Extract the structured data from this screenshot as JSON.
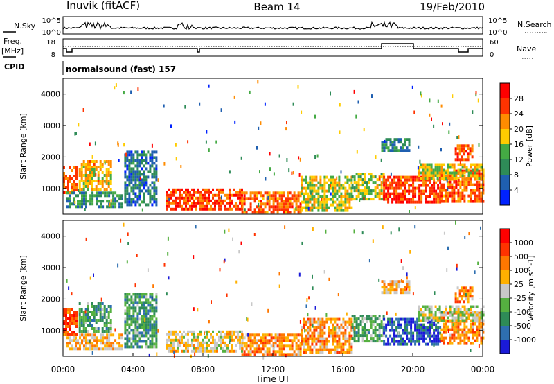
{
  "header": {
    "station": "Inuvik (fitACF)",
    "beam": "Beam 14",
    "date": "19/Feb/2010"
  },
  "top_panels": {
    "nsky_label": "N.Sky",
    "nsky_ticks": [
      "10^5",
      "10^0"
    ],
    "nsearch_label": "N.Search",
    "nsearch_ticks": [
      "10^5",
      "10^0"
    ],
    "freq_label": "Freq.",
    "freq_unit": "[MHz]",
    "freq_ticks": [
      "18",
      "8"
    ],
    "nave_label": "Nave",
    "nave_ticks": [
      "60",
      "0"
    ],
    "cpid_label": "CPID",
    "cpid_value": "normalsound (fast) 157"
  },
  "x_axis": {
    "label": "Time UT",
    "ticks": [
      "00:00",
      "04:00",
      "08:00",
      "12:00",
      "16:00",
      "20:00",
      "00:00"
    ]
  },
  "chart_data": [
    {
      "type": "heatmap",
      "quantity": "power",
      "ylabel": "Slant Range [km]",
      "ylim": [
        180,
        4500
      ],
      "yticks": [
        1000,
        2000,
        3000,
        4000
      ],
      "xlim_hours": [
        0,
        24
      ],
      "colorbar": {
        "label": "Power [dB]",
        "ticks": [
          "28",
          "24",
          "20",
          "16",
          "12",
          "8",
          "4"
        ],
        "colors": [
          "#0022ff",
          "#1f5fb0",
          "#2e8b57",
          "#44aa44",
          "#ffcc00",
          "#ff8c00",
          "#ff3300",
          "#ff0000"
        ]
      },
      "regions": [
        {
          "t": [
            0.0,
            0.8
          ],
          "r": [
            900,
            1700
          ],
          "level": 0.78
        },
        {
          "t": [
            0.9,
            2.8
          ],
          "r": [
            1000,
            1900
          ],
          "level": 0.62
        },
        {
          "t": [
            0.2,
            3.3
          ],
          "r": [
            400,
            900
          ],
          "level": 0.3
        },
        {
          "t": [
            3.5,
            5.3
          ],
          "r": [
            500,
            2200
          ],
          "level": 0.2
        },
        {
          "t": [
            5.9,
            10.2
          ],
          "r": [
            300,
            1000
          ],
          "level": 0.85
        },
        {
          "t": [
            10.2,
            13.6
          ],
          "r": [
            250,
            900
          ],
          "level": 0.78
        },
        {
          "t": [
            13.6,
            16.5
          ],
          "r": [
            300,
            1400
          ],
          "level": 0.55
        },
        {
          "t": [
            16.5,
            18.3
          ],
          "r": [
            700,
            1500
          ],
          "level": 0.5
        },
        {
          "t": [
            18.3,
            21.6
          ],
          "r": [
            600,
            1400
          ],
          "level": 0.88
        },
        {
          "t": [
            21.6,
            24.0
          ],
          "r": [
            600,
            1600
          ],
          "level": 0.8
        },
        {
          "t": [
            20.3,
            24.0
          ],
          "r": [
            1300,
            1800
          ],
          "level": 0.55
        },
        {
          "t": [
            18.2,
            19.8
          ],
          "r": [
            2200,
            2600
          ],
          "level": 0.25
        },
        {
          "t": [
            22.4,
            23.4
          ],
          "r": [
            1900,
            2400
          ],
          "level": 0.82
        }
      ]
    },
    {
      "type": "heatmap",
      "quantity": "velocity",
      "ylabel": "Slant Range [km]",
      "ylim": [
        180,
        4500
      ],
      "yticks": [
        1000,
        2000,
        3000,
        4000
      ],
      "xlim_hours": [
        0,
        24
      ],
      "colorbar": {
        "label": "Velocity [m s^-1]",
        "ticks": [
          "1000",
          "500",
          "100",
          "25",
          "-25",
          "-100",
          "-500",
          "-1000"
        ],
        "colors": [
          "#1a1ad8",
          "#2e6fb0",
          "#2e8b57",
          "#55b040",
          "#c8c8c8",
          "#ffb000",
          "#ff7700",
          "#ff3300",
          "#ff0000"
        ]
      },
      "regions": [
        {
          "t": [
            0.0,
            0.8
          ],
          "r": [
            900,
            1700
          ],
          "level": 0.82
        },
        {
          "t": [
            0.9,
            2.8
          ],
          "r": [
            1000,
            1900
          ],
          "level": 0.3
        },
        {
          "t": [
            0.2,
            3.3
          ],
          "r": [
            400,
            900
          ],
          "level": 0.62
        },
        {
          "t": [
            3.5,
            5.3
          ],
          "r": [
            500,
            2200
          ],
          "level": 0.3
        },
        {
          "t": [
            5.9,
            10.2
          ],
          "r": [
            300,
            1000
          ],
          "level": 0.55
        },
        {
          "t": [
            10.2,
            13.6
          ],
          "r": [
            250,
            900
          ],
          "level": 0.72
        },
        {
          "t": [
            13.6,
            16.5
          ],
          "r": [
            300,
            1400
          ],
          "level": 0.68
        },
        {
          "t": [
            16.5,
            18.3
          ],
          "r": [
            700,
            1500
          ],
          "level": 0.35
        },
        {
          "t": [
            18.3,
            21.6
          ],
          "r": [
            600,
            1400
          ],
          "level": 0.1
        },
        {
          "t": [
            21.6,
            24.0
          ],
          "r": [
            600,
            1600
          ],
          "level": 0.72
        },
        {
          "t": [
            20.3,
            24.0
          ],
          "r": [
            1300,
            1800
          ],
          "level": 0.48
        },
        {
          "t": [
            18.2,
            19.8
          ],
          "r": [
            2200,
            2600
          ],
          "level": 0.62
        },
        {
          "t": [
            22.4,
            23.4
          ],
          "r": [
            1900,
            2400
          ],
          "level": 0.72
        }
      ]
    }
  ]
}
